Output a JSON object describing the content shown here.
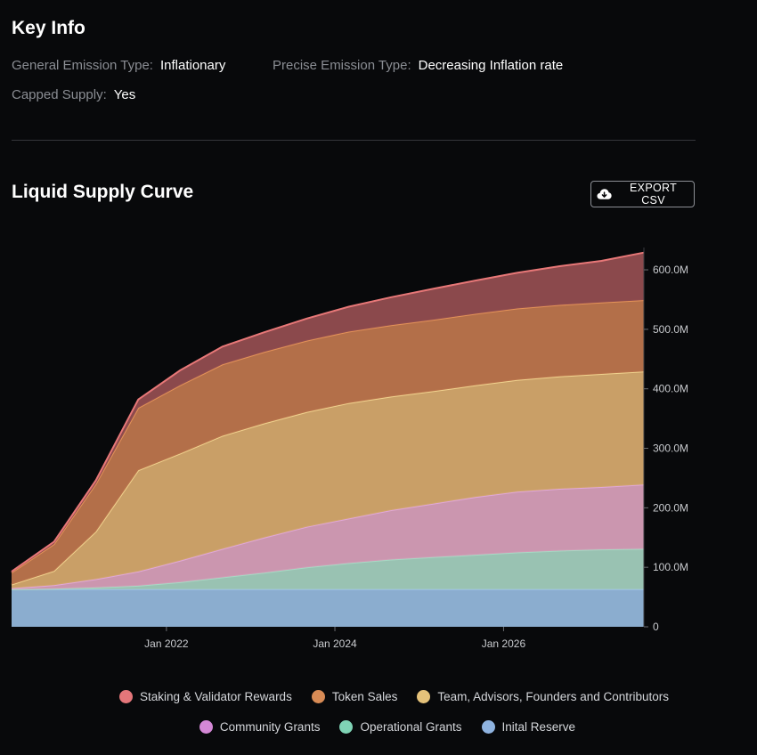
{
  "key_info": {
    "title": "Key Info",
    "general_emission_label": "General Emission Type:",
    "general_emission_value": "Inflationary",
    "precise_emission_label": "Precise Emission Type:",
    "precise_emission_value": "Decreasing Inflation rate",
    "capped_supply_label": "Capped Supply:",
    "capped_supply_value": "Yes"
  },
  "chart_section": {
    "title": "Liquid Supply Curve",
    "export_label": "EXPORT CSV",
    "export_icon": "cloud-download-icon"
  },
  "chart_data": {
    "type": "area",
    "stacked": true,
    "x": [
      "2020-03-01",
      "2020-09-01",
      "2021-03-01",
      "2021-09-01",
      "2022-03-01",
      "2022-09-01",
      "2023-03-01",
      "2023-09-01",
      "2024-03-01",
      "2024-09-01",
      "2025-03-01",
      "2025-09-01",
      "2026-03-01",
      "2026-09-01",
      "2027-03-01",
      "2027-09-01"
    ],
    "xlim": [
      "2020-03-01",
      "2027-09-01"
    ],
    "xticks": [
      {
        "value": "2022-01-01",
        "label": "Jan 2022"
      },
      {
        "value": "2024-01-01",
        "label": "Jan 2024"
      },
      {
        "value": "2026-01-01",
        "label": "Jan 2026"
      }
    ],
    "ylim": [
      0,
      630
    ],
    "yunit": "M",
    "yticks": [
      {
        "value": 0,
        "label": "0"
      },
      {
        "value": 100,
        "label": "100.0M"
      },
      {
        "value": 200,
        "label": "200.0M"
      },
      {
        "value": 300,
        "label": "300.0M"
      },
      {
        "value": 400,
        "label": "400.0M"
      },
      {
        "value": 500,
        "label": "500.0M"
      },
      {
        "value": 600,
        "label": "600.0M"
      }
    ],
    "grid": false,
    "legend_position": "bottom",
    "series": [
      {
        "name": "Inital Reserve",
        "color": "#8fb3d6",
        "values": [
          63,
          63,
          63,
          63,
          63,
          63,
          63,
          63,
          63,
          63,
          63,
          63,
          63,
          63,
          63,
          63
        ]
      },
      {
        "name": "Operational Grants",
        "color": "#9ec8b8",
        "values": [
          0,
          1,
          3,
          6,
          12,
          20,
          28,
          37,
          44,
          50,
          54,
          58,
          62,
          65,
          67,
          68
        ]
      },
      {
        "name": "Community Grants",
        "color": "#d29bb5",
        "values": [
          2,
          6,
          14,
          24,
          36,
          48,
          59,
          68,
          75,
          83,
          90,
          97,
          102,
          104,
          105,
          108
        ]
      },
      {
        "name": "Team, Advisors, Founders and Contributors",
        "color": "#cfa46a",
        "values": [
          6,
          24,
          80,
          170,
          180,
          190,
          192,
          193,
          194,
          191,
          189,
          188,
          188,
          189,
          190,
          190
        ]
      },
      {
        "name": "Token Sales",
        "color": "#b9734b",
        "values": [
          20,
          45,
          80,
          105,
          115,
          120,
          120,
          120,
          120,
          120,
          120,
          120,
          120,
          120,
          120,
          120
        ]
      },
      {
        "name": "Staking & Validator Rewards",
        "color": "#8f4b4e",
        "values": [
          2,
          4,
          6,
          14,
          25,
          30,
          33,
          37,
          42,
          47,
          52,
          56,
          60,
          65,
          70,
          80
        ]
      }
    ]
  },
  "legend": {
    "row1": [
      {
        "label": "Staking & Validator Rewards",
        "color": "#e4767a"
      },
      {
        "label": "Token Sales",
        "color": "#d88b55"
      },
      {
        "label": "Team, Advisors, Founders and Contributors",
        "color": "#e5c27a"
      }
    ],
    "row2": [
      {
        "label": "Community Grants",
        "color": "#d488d6"
      },
      {
        "label": "Operational Grants",
        "color": "#7fd3b5"
      },
      {
        "label": "Inital Reserve",
        "color": "#8fb3e0"
      }
    ]
  }
}
